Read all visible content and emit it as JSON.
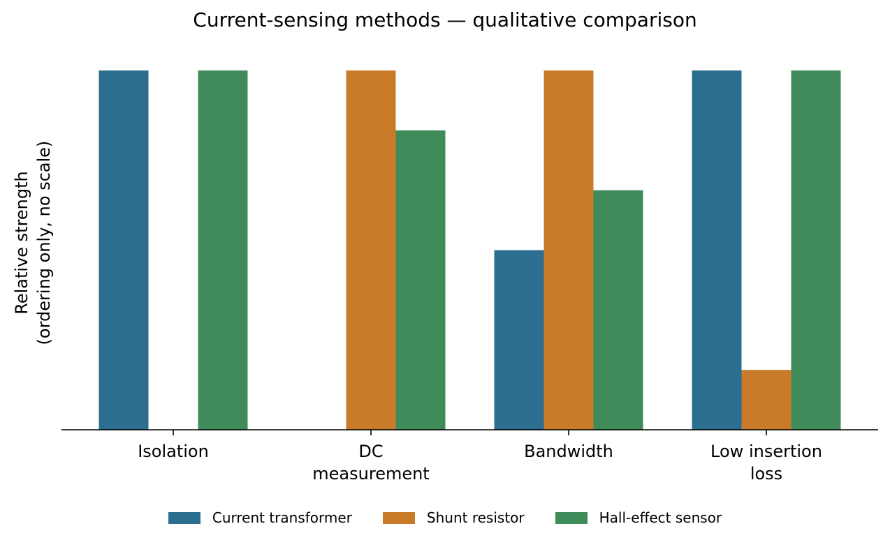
{
  "chart_data": {
    "type": "bar",
    "title": "Current-sensing methods — qualitative comparison",
    "xlabel": "",
    "ylabel": "Relative strength\n(ordering only, no scale)",
    "categories": [
      "Isolation",
      "DC\nmeasurement",
      "Bandwidth",
      "Low insertion\nloss"
    ],
    "series": [
      {
        "name": "Current transformer",
        "color": "#2c6e8f",
        "values": [
          3,
          0,
          1.5,
          3
        ]
      },
      {
        "name": "Shunt resistor",
        "color": "#c97b2a",
        "values": [
          0,
          3,
          3,
          0.5
        ]
      },
      {
        "name": "Hall-effect sensor",
        "color": "#3f8c5a",
        "values": [
          3,
          2.5,
          2,
          3
        ]
      }
    ],
    "ylim": [
      0,
      3
    ],
    "y_ticks_shown": false,
    "grid": false,
    "legend_position": "bottom-center"
  }
}
